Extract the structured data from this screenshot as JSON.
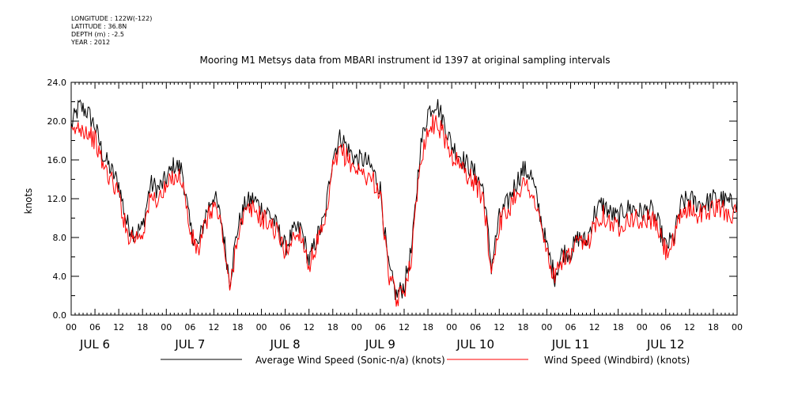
{
  "header": {
    "longitude": "LONGITUDE : 122W(-122)",
    "latitude": "LATITUDE : 36.8N",
    "depth": "DEPTH (m) : -2.5",
    "year": "YEAR : 2012"
  },
  "chart_data": {
    "type": "line",
    "title": "Mooring M1 Metsys data from MBARI instrument id 1397 at original sampling intervals",
    "ylabel": "knots",
    "xlabel": "",
    "ylim": [
      0,
      24
    ],
    "yticks": [
      "0.0",
      "4.0",
      "8.0",
      "12.0",
      "16.0",
      "20.0",
      "24.0"
    ],
    "xlim_hours": [
      0,
      168
    ],
    "hour_ticks": [
      "00",
      "06",
      "12",
      "18",
      "00",
      "06",
      "12",
      "18",
      "00",
      "06",
      "12",
      "18",
      "00",
      "06",
      "12",
      "18",
      "00",
      "06",
      "12",
      "18",
      "00",
      "06",
      "12",
      "18",
      "00",
      "06",
      "12",
      "18",
      "00"
    ],
    "day_labels": [
      "JUL 6",
      "JUL 7",
      "JUL 8",
      "JUL 9",
      "JUL 10",
      "JUL 11",
      "JUL 12"
    ],
    "grid": false,
    "legend_placement": "bottom",
    "series": [
      {
        "name": "Average Wind Speed (Sonic-n/a) (knots)",
        "color": "#000000",
        "x": [
          0,
          2,
          4,
          6,
          8,
          10,
          12,
          14,
          16,
          18,
          20,
          22,
          24,
          26,
          28,
          30,
          32,
          34,
          36,
          38,
          40,
          42,
          44,
          46,
          48,
          50,
          52,
          54,
          56,
          58,
          60,
          62,
          64,
          66,
          68,
          70,
          72,
          74,
          76,
          78,
          80,
          82,
          84,
          86,
          88,
          90,
          92,
          94,
          96,
          98,
          100,
          102,
          104,
          106,
          108,
          110,
          112,
          114,
          116,
          118,
          120,
          122,
          124,
          126,
          128,
          130,
          132,
          134,
          136,
          138,
          140,
          142,
          144,
          146,
          148,
          150,
          152,
          154,
          156,
          158,
          160,
          162,
          164,
          166,
          168
        ],
        "values": [
          19.5,
          21.5,
          21.0,
          19.5,
          16.5,
          15.0,
          13.5,
          9.5,
          8.5,
          9.0,
          13.5,
          13.0,
          14.0,
          15.5,
          15.0,
          9.0,
          7.0,
          10.5,
          12.5,
          9.5,
          3.5,
          9.0,
          11.5,
          12.0,
          11.0,
          10.5,
          9.0,
          7.0,
          8.5,
          9.0,
          5.5,
          8.0,
          10.0,
          16.5,
          18.5,
          17.0,
          16.0,
          16.0,
          15.0,
          13.0,
          5.0,
          2.0,
          3.0,
          7.0,
          17.0,
          21.0,
          22.0,
          20.0,
          17.5,
          16.5,
          15.5,
          14.5,
          13.0,
          5.0,
          10.0,
          11.5,
          13.5,
          15.0,
          14.5,
          11.0,
          7.0,
          4.0,
          6.5,
          6.5,
          8.0,
          7.5,
          10.5,
          11.5,
          10.5,
          10.0,
          11.0,
          11.0,
          10.5,
          11.0,
          9.5,
          7.0,
          8.0,
          11.5,
          12.0,
          11.5,
          11.5,
          12.0,
          12.0,
          11.5,
          11.5
        ]
      },
      {
        "name": "Wind Speed (Windbird) (knots)",
        "color": "#ff0000",
        "x": [
          0,
          2,
          4,
          6,
          8,
          10,
          12,
          14,
          16,
          18,
          20,
          22,
          24,
          26,
          28,
          30,
          32,
          34,
          36,
          38,
          40,
          42,
          44,
          46,
          48,
          50,
          52,
          54,
          56,
          58,
          60,
          62,
          64,
          66,
          68,
          70,
          72,
          74,
          76,
          78,
          80,
          82,
          84,
          86,
          88,
          90,
          92,
          94,
          96,
          98,
          100,
          102,
          104,
          106,
          108,
          110,
          112,
          114,
          116,
          118,
          120,
          122,
          124,
          126,
          128,
          130,
          132,
          134,
          136,
          138,
          140,
          142,
          144,
          146,
          148,
          150,
          152,
          154,
          156,
          158,
          160,
          162,
          164,
          166,
          168
        ],
        "values": [
          18.5,
          19.5,
          19.0,
          18.0,
          15.5,
          14.0,
          12.5,
          8.5,
          8.0,
          8.5,
          12.0,
          12.0,
          13.0,
          14.5,
          14.0,
          8.5,
          6.5,
          9.5,
          11.5,
          9.0,
          2.5,
          8.5,
          10.5,
          11.0,
          10.0,
          9.5,
          8.5,
          6.5,
          8.0,
          8.5,
          5.0,
          7.5,
          9.0,
          15.0,
          17.0,
          16.0,
          15.0,
          14.5,
          14.0,
          12.5,
          4.5,
          1.5,
          2.5,
          6.5,
          16.0,
          19.0,
          20.0,
          18.5,
          16.5,
          15.5,
          14.5,
          13.5,
          12.0,
          4.5,
          9.5,
          10.5,
          12.5,
          13.5,
          13.0,
          10.0,
          6.5,
          3.5,
          6.0,
          6.0,
          7.5,
          7.0,
          9.5,
          10.5,
          9.5,
          9.0,
          10.0,
          10.0,
          9.5,
          10.0,
          9.0,
          6.5,
          7.5,
          10.5,
          11.0,
          10.5,
          10.5,
          11.0,
          11.0,
          10.5,
          10.5
        ]
      }
    ]
  }
}
